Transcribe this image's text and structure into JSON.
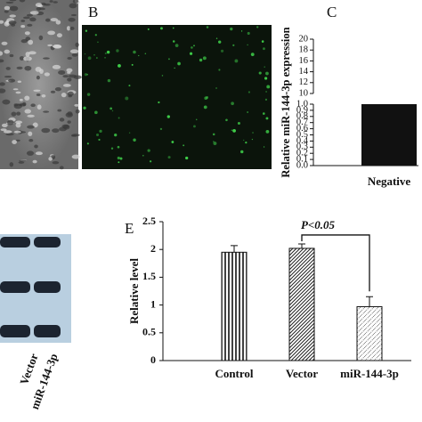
{
  "panel_labels": [
    "B",
    "C",
    "E"
  ],
  "blot_labels": [
    "Vector",
    "miR-144-3p"
  ],
  "chart_data": [
    {
      "type": "bar",
      "panel": "C",
      "ylabel": "Relative miR-144-3p expression",
      "categories": [
        "Negative"
      ],
      "values": [
        1.0
      ],
      "color": "#111111",
      "ylim": [
        0,
        20
      ],
      "axis_break": [
        1,
        10
      ],
      "yticks": [
        {
          "value": 0,
          "label": "0.0"
        },
        0.1,
        0.2,
        0.3,
        0.4,
        0.5,
        0.6,
        0.7,
        0.8,
        0.9,
        {
          "value": 1,
          "label": "1.0"
        },
        10,
        12,
        14,
        16,
        18,
        20
      ]
    },
    {
      "type": "errorbar",
      "panel": "E",
      "ylabel": "Relative level",
      "categories": [
        "Control",
        "Vector",
        "miR-144-3p"
      ],
      "values": [
        1.95,
        2.02,
        0.97
      ],
      "errors": [
        0.12,
        0.08,
        0.18
      ],
      "patterns": [
        "vertical",
        "diagonal",
        "dotted"
      ],
      "ylim": [
        0,
        2.5
      ],
      "yticks": [
        0,
        0.5,
        1,
        1.5,
        2,
        2.5
      ],
      "annotation": "P<0.05"
    }
  ]
}
